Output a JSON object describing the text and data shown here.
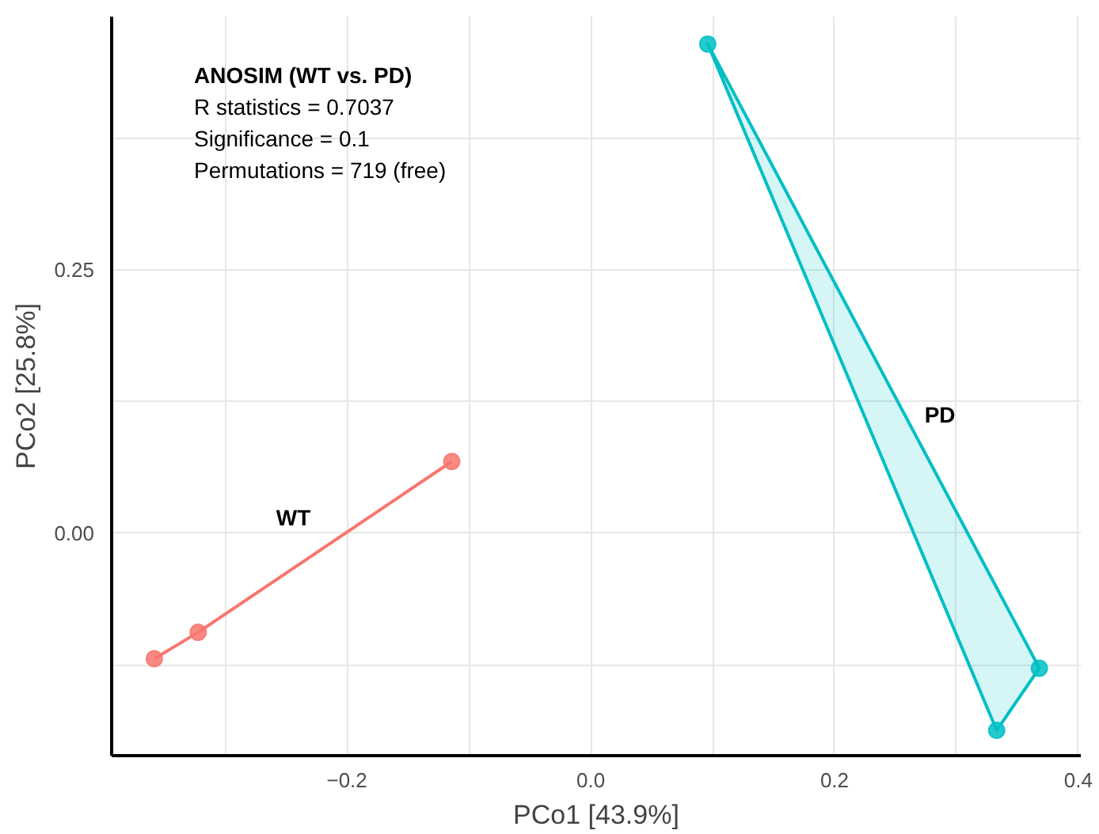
{
  "chart_data": {
    "type": "line",
    "xlabel": "PCo1 [43.9%]",
    "ylabel": "PCo2 [25.8%]",
    "annotations": [
      "ANOSIM (WT vs. PD)",
      "R statistics = 0.7037",
      "Significance = 0.1",
      "Permutations = 719 (free)"
    ],
    "series": [
      {
        "name": "WT",
        "color": "#f8766d",
        "x": [
          -0.358,
          -0.322,
          -0.114
        ],
        "values": [
          -0.119,
          -0.094,
          0.068
        ]
      },
      {
        "name": "PD",
        "type": "area",
        "color": "#00bfc4",
        "x": [
          0.096,
          0.368,
          0.333
        ],
        "values": [
          0.464,
          -0.128,
          -0.187
        ]
      }
    ],
    "marker": "circle",
    "grid": true,
    "xlim": [
      -0.393,
      0.402
    ],
    "xticks": [
      {
        "value": -0.3,
        "label": null
      },
      {
        "value": -0.2,
        "label": "−0.2"
      },
      {
        "value": -0.1,
        "label": null
      },
      {
        "value": 0,
        "label": "0.0"
      },
      {
        "value": 0.1,
        "label": null
      },
      {
        "value": 0.2,
        "label": "0.2"
      },
      {
        "value": 0.3,
        "label": null
      },
      {
        "value": 0.4,
        "label": "0.4"
      }
    ],
    "ylim": [
      -0.211,
      0.49
    ],
    "yticks": [
      {
        "value": -0.125,
        "label": null
      },
      {
        "value": 0,
        "label": "0.00"
      },
      {
        "value": 0.125,
        "label": null
      },
      {
        "value": 0.25,
        "label": "0.25"
      },
      {
        "value": 0.375,
        "label": null
      }
    ]
  }
}
